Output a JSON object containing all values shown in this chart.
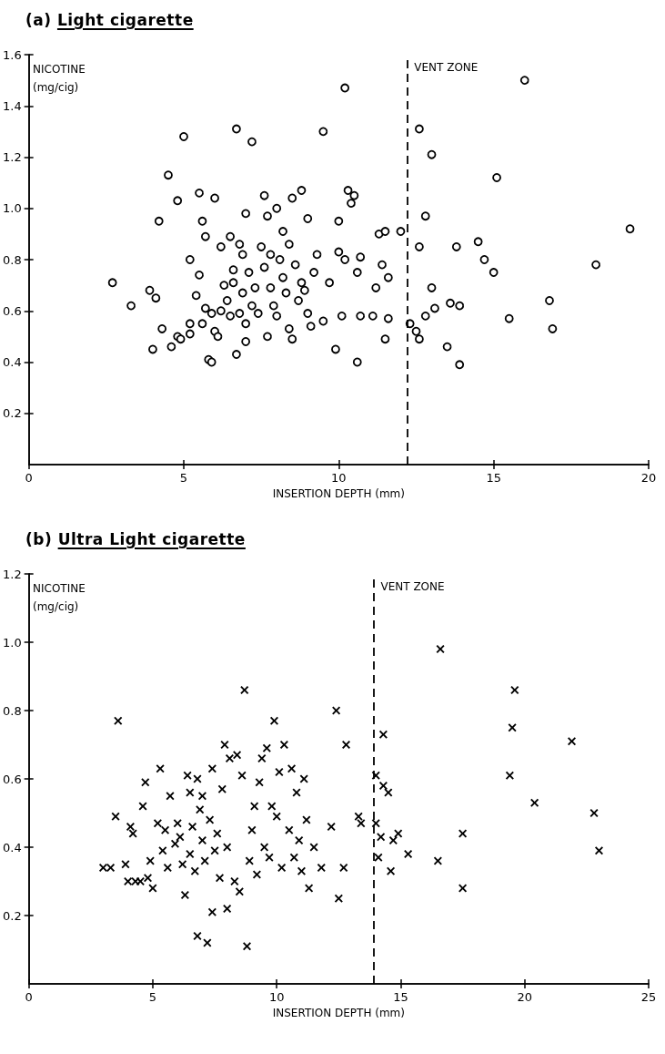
{
  "chart_data": [
    {
      "type": "scatter",
      "title": "(a) Light cigarette",
      "xlabel": "INSERTION DEPTH (mm)",
      "ylabel": "NICOTINE\n(mg/cig)",
      "marker": "circle",
      "grid": false,
      "xlim": [
        0,
        20
      ],
      "xticks": [
        0,
        5,
        10,
        15,
        20
      ],
      "ylim": [
        0,
        1.6
      ],
      "yticks": [
        0.2,
        0.4,
        0.6,
        0.8,
        {
          "value": 1,
          "label": "1.0"
        },
        1.2,
        1.4,
        1.6
      ],
      "ref_lines": [
        {
          "axis": "x",
          "value": 12.2,
          "label": "VENT ZONE",
          "line_style": "dashed",
          "color": "#000000"
        }
      ],
      "series": [
        {
          "color": "#000000",
          "x": [
            2.7,
            3.3,
            3.9,
            4.0,
            4.1,
            4.2,
            4.3,
            4.5,
            4.6,
            4.8,
            4.8,
            4.9,
            5.0,
            5.2,
            5.2,
            5.2,
            5.4,
            5.5,
            5.5,
            5.6,
            5.6,
            5.7,
            5.7,
            5.8,
            5.9,
            5.9,
            6.0,
            6.0,
            6.1,
            6.2,
            6.2,
            6.3,
            6.4,
            6.5,
            6.5,
            6.6,
            6.6,
            6.7,
            6.7,
            6.8,
            6.8,
            6.9,
            6.9,
            7.0,
            7.0,
            7.0,
            7.1,
            7.2,
            7.2,
            7.3,
            7.4,
            7.5,
            7.6,
            7.6,
            7.7,
            7.7,
            7.8,
            7.8,
            7.9,
            8.0,
            8.0,
            8.1,
            8.2,
            8.2,
            8.3,
            8.4,
            8.4,
            8.5,
            8.5,
            8.6,
            8.7,
            8.8,
            8.8,
            8.9,
            9.0,
            9.0,
            9.1,
            9.2,
            9.3,
            9.5,
            9.5,
            9.7,
            9.9,
            10.0,
            10.0,
            10.1,
            10.2,
            10.2,
            10.3,
            10.4,
            10.5,
            10.6,
            10.6,
            10.7,
            10.7,
            11.1,
            11.2,
            11.3,
            11.4,
            11.5,
            11.5,
            11.6,
            11.6,
            12.0,
            12.3,
            12.5,
            12.6,
            12.6,
            12.6,
            12.8,
            12.8,
            13.0,
            13.0,
            13.1,
            13.5,
            13.6,
            13.8,
            13.9,
            13.9,
            14.5,
            14.7,
            15.0,
            15.1,
            15.5,
            16.0,
            16.8,
            16.9,
            18.3,
            19.4
          ],
          "values": [
            0.71,
            0.62,
            0.68,
            0.45,
            0.65,
            0.95,
            0.53,
            1.13,
            0.46,
            1.03,
            0.5,
            0.49,
            1.28,
            0.8,
            0.51,
            0.55,
            0.66,
            1.06,
            0.74,
            0.95,
            0.55,
            0.89,
            0.61,
            0.41,
            0.4,
            0.59,
            1.04,
            0.52,
            0.5,
            0.85,
            0.6,
            0.7,
            0.64,
            0.89,
            0.58,
            0.76,
            0.71,
            1.31,
            0.43,
            0.86,
            0.59,
            0.82,
            0.67,
            0.98,
            0.55,
            0.48,
            0.75,
            1.26,
            0.62,
            0.69,
            0.59,
            0.85,
            0.77,
            1.05,
            0.97,
            0.5,
            0.82,
            0.69,
            0.62,
            1.0,
            0.58,
            0.8,
            0.91,
            0.73,
            0.67,
            0.86,
            0.53,
            1.04,
            0.49,
            0.78,
            0.64,
            1.07,
            0.71,
            0.68,
            0.96,
            0.59,
            0.54,
            0.75,
            0.82,
            1.3,
            0.56,
            0.71,
            0.45,
            0.95,
            0.83,
            0.58,
            1.47,
            0.8,
            1.07,
            1.02,
            1.05,
            0.4,
            0.75,
            0.81,
            0.58,
            0.58,
            0.69,
            0.9,
            0.78,
            0.91,
            0.49,
            0.57,
            0.73,
            0.91,
            0.55,
            0.52,
            1.31,
            0.85,
            0.49,
            0.97,
            0.58,
            1.21,
            0.69,
            0.61,
            0.46,
            0.63,
            0.85,
            0.39,
            0.62,
            0.87,
            0.8,
            0.75,
            1.12,
            0.57,
            1.5,
            0.64,
            0.53,
            0.78,
            0.92
          ]
        }
      ]
    },
    {
      "type": "scatter",
      "title": "(b) Ultra Light cigarette",
      "xlabel": "INSERTION DEPTH (mm)",
      "ylabel": "NICOTINE\n(mg/cig)",
      "marker": "cross",
      "grid": false,
      "xlim": [
        0,
        25
      ],
      "xticks": [
        0,
        5,
        10,
        15,
        20,
        25
      ],
      "ylim": [
        0,
        1.2
      ],
      "yticks": [
        0.2,
        0.4,
        0.6,
        0.8,
        {
          "value": 1,
          "label": "1.0"
        },
        1.2
      ],
      "ref_lines": [
        {
          "axis": "x",
          "value": 13.9,
          "label": "VENT ZONE",
          "line_style": "dashed",
          "color": "#000000"
        }
      ],
      "series": [
        {
          "color": "#000000",
          "x": [
            3.0,
            3.3,
            3.5,
            3.6,
            3.9,
            4.0,
            4.1,
            4.2,
            4.3,
            4.5,
            4.6,
            4.7,
            4.8,
            4.9,
            5.0,
            5.2,
            5.3,
            5.4,
            5.5,
            5.6,
            5.7,
            5.9,
            6.0,
            6.1,
            6.2,
            6.3,
            6.4,
            6.5,
            6.5,
            6.6,
            6.7,
            6.8,
            6.8,
            6.9,
            7.0,
            7.0,
            7.1,
            7.2,
            7.3,
            7.4,
            7.4,
            7.5,
            7.6,
            7.7,
            7.8,
            7.9,
            8.0,
            8.0,
            8.1,
            8.3,
            8.4,
            8.5,
            8.6,
            8.7,
            8.8,
            8.9,
            9.0,
            9.1,
            9.2,
            9.3,
            9.4,
            9.5,
            9.6,
            9.7,
            9.8,
            9.9,
            10.0,
            10.1,
            10.2,
            10.3,
            10.5,
            10.6,
            10.7,
            10.8,
            10.9,
            11.0,
            11.1,
            11.2,
            11.3,
            11.5,
            11.8,
            12.2,
            12.4,
            12.5,
            12.7,
            12.8,
            13.3,
            13.4,
            14.0,
            14.0,
            14.1,
            14.2,
            14.3,
            14.3,
            14.5,
            14.6,
            14.7,
            14.9,
            15.3,
            16.5,
            16.6,
            17.5,
            17.5,
            19.4,
            19.5,
            19.6,
            20.4,
            21.9,
            22.8,
            23.0
          ],
          "values": [
            0.34,
            0.34,
            0.49,
            0.77,
            0.35,
            0.3,
            0.46,
            0.44,
            0.3,
            0.3,
            0.52,
            0.59,
            0.31,
            0.36,
            0.28,
            0.47,
            0.63,
            0.39,
            0.45,
            0.34,
            0.55,
            0.41,
            0.47,
            0.43,
            0.35,
            0.26,
            0.61,
            0.56,
            0.38,
            0.46,
            0.33,
            0.6,
            0.14,
            0.51,
            0.55,
            0.42,
            0.36,
            0.12,
            0.48,
            0.63,
            0.21,
            0.39,
            0.44,
            0.31,
            0.57,
            0.7,
            0.4,
            0.22,
            0.66,
            0.3,
            0.67,
            0.27,
            0.61,
            0.86,
            0.11,
            0.36,
            0.45,
            0.52,
            0.32,
            0.59,
            0.66,
            0.4,
            0.69,
            0.37,
            0.52,
            0.77,
            0.49,
            0.62,
            0.34,
            0.7,
            0.45,
            0.63,
            0.37,
            0.56,
            0.42,
            0.33,
            0.6,
            0.48,
            0.28,
            0.4,
            0.34,
            0.46,
            0.8,
            0.25,
            0.34,
            0.7,
            0.49,
            0.47,
            0.61,
            0.47,
            0.37,
            0.43,
            0.58,
            0.73,
            0.56,
            0.33,
            0.42,
            0.44,
            0.38,
            0.36,
            0.98,
            0.44,
            0.28,
            0.61,
            0.75,
            0.86,
            0.53,
            0.71,
            0.5,
            0.39
          ]
        }
      ]
    }
  ]
}
